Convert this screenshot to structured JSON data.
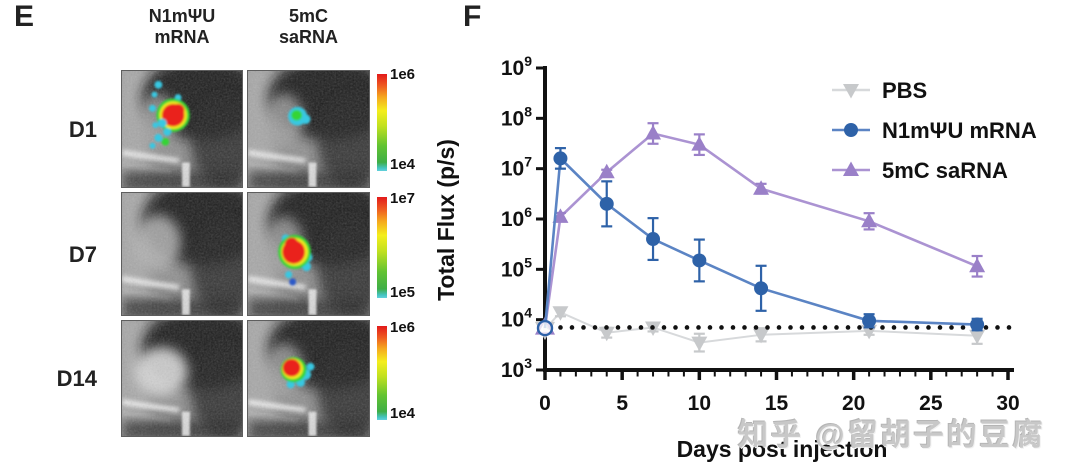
{
  "panel_e": {
    "label": "E",
    "column_headers": [
      {
        "line1": "N1mΨU",
        "line2": "mRNA"
      },
      {
        "line1": "5mC",
        "line2": "saRNA"
      }
    ],
    "rows": [
      {
        "label": "D1",
        "scale_top": "1e6",
        "scale_bottom": "1e4",
        "cells": [
          {
            "signal": "red-large-speckled"
          },
          {
            "signal": "green-small"
          }
        ]
      },
      {
        "label": "D7",
        "scale_top": "1e7",
        "scale_bottom": "1e5",
        "cells": [
          {
            "signal": "none"
          },
          {
            "signal": "red-large"
          }
        ]
      },
      {
        "label": "D14",
        "scale_top": "1e6",
        "scale_bottom": "1e4",
        "cells": [
          {
            "signal": "none-bright"
          },
          {
            "signal": "red-medium"
          }
        ]
      }
    ]
  },
  "panel_f": {
    "label": "F",
    "chart_data": {
      "type": "line",
      "title": "",
      "xlabel": "Days post injection",
      "ylabel": "Total Flux (p/s)",
      "xlim": [
        0,
        30
      ],
      "ylim_exponents": [
        3,
        9
      ],
      "xticks": [
        0,
        5,
        10,
        15,
        20,
        25,
        30
      ],
      "ytick_exponents": [
        9,
        8,
        7,
        6,
        5,
        4,
        3
      ],
      "baseline_dotted_y": 7000,
      "legend_position": "top-right",
      "x": [
        0,
        1,
        4,
        7,
        10,
        14,
        21,
        28
      ],
      "series": [
        {
          "name": "PBS",
          "marker": "triangle-down",
          "color": "#c7c9cb",
          "line_color": "#d7d9db",
          "values": [
            6500,
            14000,
            5500,
            7000,
            3500,
            5000,
            6000,
            4800
          ],
          "err_factor": [
            1,
            1.2,
            1.25,
            1.2,
            1.5,
            1.35,
            1.2,
            1.45
          ],
          "open_first_point": true
        },
        {
          "name": "N1mΨU mRNA",
          "marker": "circle",
          "color": "#2e62a8",
          "line_color": "#5b84c4",
          "values": [
            6800,
            16000000,
            2000000,
            400000,
            150000,
            42000,
            9500,
            8000
          ],
          "err_factor": [
            1,
            1.6,
            2.8,
            2.6,
            2.6,
            2.8,
            1.35,
            1.3
          ],
          "open_first_point": true
        },
        {
          "name": "5mC saRNA",
          "marker": "triangle-up",
          "color": "#9a80c8",
          "line_color": "#ab93d2",
          "values": [
            7000,
            1100000,
            8500000,
            50000000,
            30000000,
            4000000,
            900000,
            115000
          ],
          "err_factor": [
            1,
            1.2,
            1.12,
            1.6,
            1.6,
            1.25,
            1.45,
            1.6
          ],
          "open_first_point": true
        }
      ]
    }
  },
  "watermark": {
    "text": "知乎 @留胡子的豆腐"
  }
}
